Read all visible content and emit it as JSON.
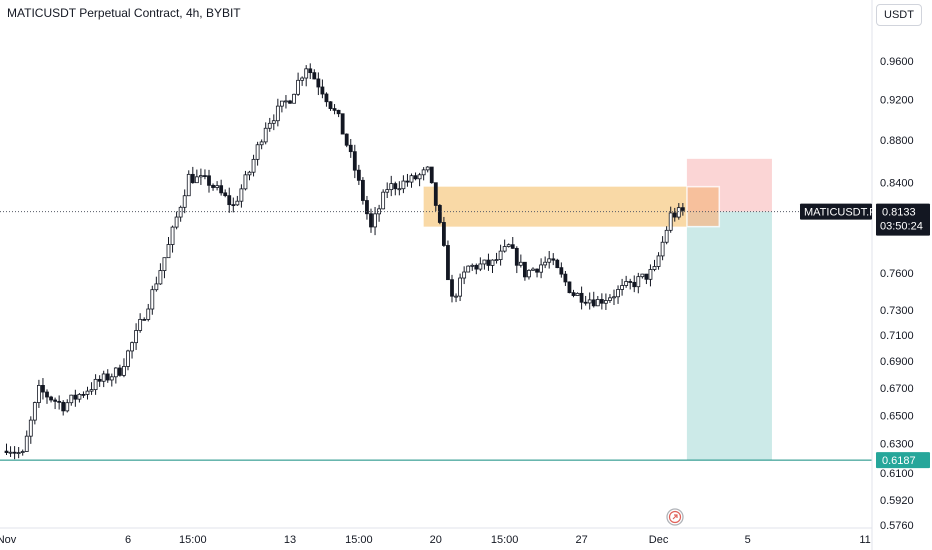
{
  "header": {
    "title": "MATICUSDT Perpetual Contract, 4h, BYBIT",
    "currency_button": "USDT"
  },
  "colors": {
    "up": "#26a69a",
    "down": "#131722",
    "candle_up_fill": "#ffffff",
    "zone": "#f9d9a6",
    "zone_overlap": "#f6b98a",
    "stop": "#fbd5d5",
    "target": "#cceae8",
    "support_line": "#0e8a7d",
    "current_price_line": "#555a66",
    "tag_current_bg": "#131722",
    "tag_support_bg": "#26a69a"
  },
  "chart_data": {
    "type": "candlestick",
    "symbol": "MATICUSDT",
    "interval": "4h",
    "exchange": "BYBIT",
    "y_ticks": [
      "0.9600",
      "0.9200",
      "0.8800",
      "0.8400",
      "0.7600",
      "0.7300",
      "0.7100",
      "0.6900",
      "0.6700",
      "0.6500",
      "0.6300",
      "0.6100",
      "0.5920",
      "0.5760"
    ],
    "y_tick_values": [
      0.96,
      0.92,
      0.88,
      0.84,
      0.76,
      0.73,
      0.71,
      0.69,
      0.67,
      0.65,
      0.63,
      0.61,
      0.592,
      0.576
    ],
    "scale": "log",
    "x_ticks": [
      "Nov",
      "6",
      "15:00",
      "13",
      "15:00",
      "20",
      "15:00",
      "27",
      "Dec",
      "5",
      "11"
    ],
    "x_tick_bars": [
      0,
      30,
      46,
      70,
      87,
      106,
      123,
      142,
      161,
      183,
      212
    ],
    "price_path_hint": [
      [
        0,
        0.628
      ],
      [
        4,
        0.622
      ],
      [
        8,
        0.668
      ],
      [
        14,
        0.657
      ],
      [
        22,
        0.673
      ],
      [
        28,
        0.683
      ],
      [
        32,
        0.71
      ],
      [
        36,
        0.744
      ],
      [
        40,
        0.783
      ],
      [
        45,
        0.845
      ],
      [
        50,
        0.84
      ],
      [
        56,
        0.818
      ],
      [
        60,
        0.85
      ],
      [
        64,
        0.895
      ],
      [
        70,
        0.922
      ],
      [
        74,
        0.955
      ],
      [
        78,
        0.93
      ],
      [
        82,
        0.9
      ],
      [
        86,
        0.852
      ],
      [
        90,
        0.798
      ],
      [
        94,
        0.835
      ],
      [
        100,
        0.842
      ],
      [
        104,
        0.85
      ],
      [
        106,
        0.82
      ],
      [
        110,
        0.738
      ],
      [
        114,
        0.765
      ],
      [
        120,
        0.768
      ],
      [
        124,
        0.782
      ],
      [
        128,
        0.76
      ],
      [
        134,
        0.771
      ],
      [
        140,
        0.743
      ],
      [
        146,
        0.737
      ],
      [
        150,
        0.743
      ],
      [
        156,
        0.754
      ],
      [
        160,
        0.762
      ],
      [
        164,
        0.81
      ],
      [
        167,
        0.8133
      ]
    ],
    "current_price": {
      "symbol_label": "MATICUSDT.P",
      "price": "0.8133",
      "countdown": "03:50:24",
      "value": 0.8133
    },
    "support_level": {
      "price": "0.6187",
      "value": 0.6187
    },
    "supply_zone": {
      "top": 0.836,
      "bottom": 0.8,
      "from_bar": 103,
      "to_bar": 176
    },
    "position": {
      "type": "short",
      "entry": 0.8133,
      "stop": 0.862,
      "target": 0.6187,
      "from_bar": 168,
      "to_bar": 189
    }
  }
}
